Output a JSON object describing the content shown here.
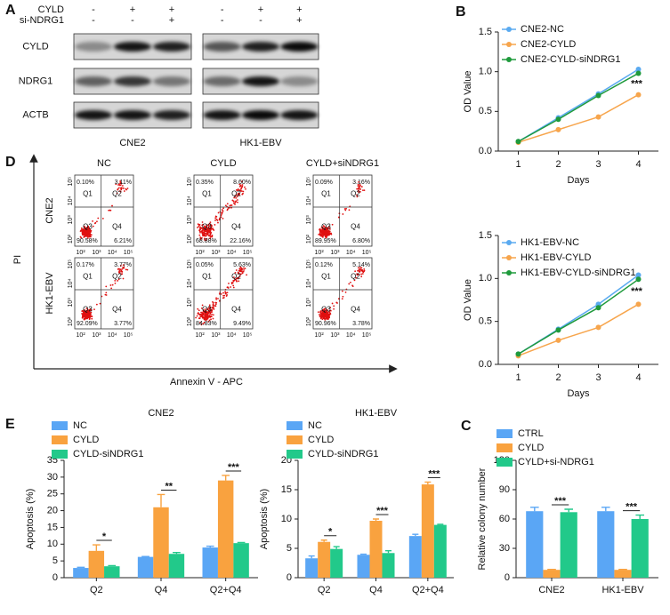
{
  "blot": {
    "panel_label": "A",
    "treatments": [
      {
        "name": "CYLD",
        "signs": [
          "-",
          "+",
          "+",
          "-",
          "+",
          "+"
        ]
      },
      {
        "name": "si-NDRG1",
        "signs": [
          "-",
          "-",
          "+",
          "-",
          "-",
          "+"
        ]
      }
    ],
    "bands": [
      "CYLD",
      "NDRG1",
      "ACTB"
    ],
    "cell_lines": [
      "CNE2",
      "HK1-EBV"
    ]
  },
  "flow": {
    "panel_label": "D",
    "columns": [
      "NC",
      "CYLD",
      "CYLD+siNDRG1"
    ],
    "rows": [
      "CNE2",
      "HK1-EBV"
    ],
    "y_axis": "PI",
    "x_axis": "Annexin V - APC",
    "quadrants": [
      "Q1",
      "Q2",
      "Q3",
      "Q4"
    ],
    "ticks": [
      "10²",
      "10³",
      "10⁴",
      "10⁵"
    ],
    "plots": [
      [
        [
          "0.10%",
          "3.11%",
          "90.58%",
          "6.21%"
        ],
        [
          "0.35%",
          "8.60%",
          "68.88%",
          "22.16%"
        ],
        [
          "0.09%",
          "3.16%",
          "89.95%",
          "6.80%"
        ]
      ],
      [
        [
          "0.17%",
          "3.77%",
          "92.09%",
          "3.77%"
        ],
        [
          "0.05%",
          "5.63%",
          "84.83%",
          "9.49%"
        ],
        [
          "0.12%",
          "5.14%",
          "90.96%",
          "3.78%"
        ]
      ]
    ]
  },
  "chart_data": [
    {
      "type": "line",
      "panel_label": "B",
      "x_label": "Days",
      "y_label": "OD Value",
      "x": [
        1,
        2,
        3,
        4
      ],
      "xlim": [
        0.5,
        4.5
      ],
      "xticks": [
        1,
        2,
        3,
        4
      ],
      "ylim": [
        0,
        1.5
      ],
      "yticks": [
        {
          "value": 0,
          "label": "0.0"
        },
        0.5,
        {
          "value": 1,
          "label": "1.0"
        },
        1.5
      ],
      "annotation": "***",
      "series": [
        {
          "name": "CNE2-NC",
          "color": "#5aaaf0",
          "values": [
            0.12,
            0.42,
            0.72,
            1.03
          ]
        },
        {
          "name": "CNE2-CYLD",
          "color": "#f7a54c",
          "values": [
            0.11,
            0.27,
            0.43,
            0.71
          ]
        },
        {
          "name": "CNE2-CYLD-siNDRG1",
          "color": "#1f9a3c",
          "values": [
            0.12,
            0.4,
            0.7,
            0.98
          ]
        }
      ]
    },
    {
      "type": "line",
      "x_label": "Days",
      "y_label": "OD Value",
      "x": [
        1,
        2,
        3,
        4
      ],
      "xlim": [
        0.5,
        4.5
      ],
      "xticks": [
        1,
        2,
        3,
        4
      ],
      "ylim": [
        0,
        1.5
      ],
      "yticks": [
        {
          "value": 0,
          "label": "0.0"
        },
        0.5,
        {
          "value": 1,
          "label": "1.0"
        },
        1.5
      ],
      "annotation": "***",
      "series": [
        {
          "name": "HK1-EBV-NC",
          "color": "#5aaaf0",
          "values": [
            0.12,
            0.41,
            0.7,
            1.04
          ]
        },
        {
          "name": "HK1-EBV-CYLD",
          "color": "#f7a54c",
          "values": [
            0.1,
            0.28,
            0.43,
            0.7
          ]
        },
        {
          "name": "HK1-EBV-CYLD-siNDRG1",
          "color": "#1f9a3c",
          "values": [
            0.12,
            0.4,
            0.66,
            0.99
          ]
        }
      ]
    },
    {
      "type": "bar",
      "panel_label": "E",
      "title": "CNE2",
      "y_label": "Apoptosis (%)",
      "categories": [
        "Q2",
        "Q4",
        "Q2+Q4"
      ],
      "ylim": [
        0,
        35
      ],
      "yticks": [
        0,
        5,
        10,
        15,
        20,
        25,
        30,
        35
      ],
      "significance": [
        "*",
        "**",
        "***"
      ],
      "series": [
        {
          "name": "NC",
          "color": "#5aa6f5",
          "values": [
            2.9,
            6.2,
            9.0
          ],
          "errors": [
            0.2,
            0.1,
            0.4
          ]
        },
        {
          "name": "CYLD",
          "color": "#f9a23f",
          "values": [
            8.0,
            21.0,
            29.0
          ],
          "errors": [
            1.8,
            3.8,
            1.5
          ]
        },
        {
          "name": "CYLD-siNDRG1",
          "color": "#22c98a",
          "values": [
            3.4,
            7.1,
            10.3
          ],
          "errors": [
            0.2,
            0.4,
            0.2
          ]
        }
      ]
    },
    {
      "type": "bar",
      "title": "HK1-EBV",
      "y_label": "Apoptosis (%)",
      "categories": [
        "Q2",
        "Q4",
        "Q2+Q4"
      ],
      "ylim": [
        0,
        20
      ],
      "yticks": [
        0,
        5,
        10,
        15,
        20
      ],
      "significance": [
        "*",
        "***",
        "***"
      ],
      "series": [
        {
          "name": "NC",
          "color": "#5aa6f5",
          "values": [
            3.3,
            3.9,
            7.1
          ],
          "errors": [
            0.4,
            0.1,
            0.3
          ]
        },
        {
          "name": "CYLD",
          "color": "#f9a23f",
          "values": [
            6.1,
            9.7,
            15.9
          ],
          "errors": [
            0.3,
            0.3,
            0.4
          ]
        },
        {
          "name": "CYLD-siNDRG1",
          "color": "#22c98a",
          "values": [
            4.9,
            4.2,
            9.0
          ],
          "errors": [
            0.4,
            0.4,
            0.1
          ]
        }
      ]
    },
    {
      "type": "bar",
      "panel_label": "C",
      "y_label": "Relative colony number",
      "categories": [
        "CNE2",
        "HK1-EBV"
      ],
      "ylim": [
        0,
        120
      ],
      "yticks": [
        0,
        30,
        60,
        90,
        120
      ],
      "significance": [
        "***",
        "***"
      ],
      "series": [
        {
          "name": "CTRL",
          "color": "#5aa6f5",
          "values": [
            68,
            68
          ],
          "errors": [
            4,
            4
          ]
        },
        {
          "name": "CYLD",
          "color": "#f9a23f",
          "values": [
            8,
            8
          ],
          "errors": [
            0.5,
            0.5
          ]
        },
        {
          "name": "CYLD+si-NDRG1",
          "color": "#22c98a",
          "values": [
            67,
            60
          ],
          "errors": [
            3,
            4
          ]
        }
      ]
    }
  ]
}
